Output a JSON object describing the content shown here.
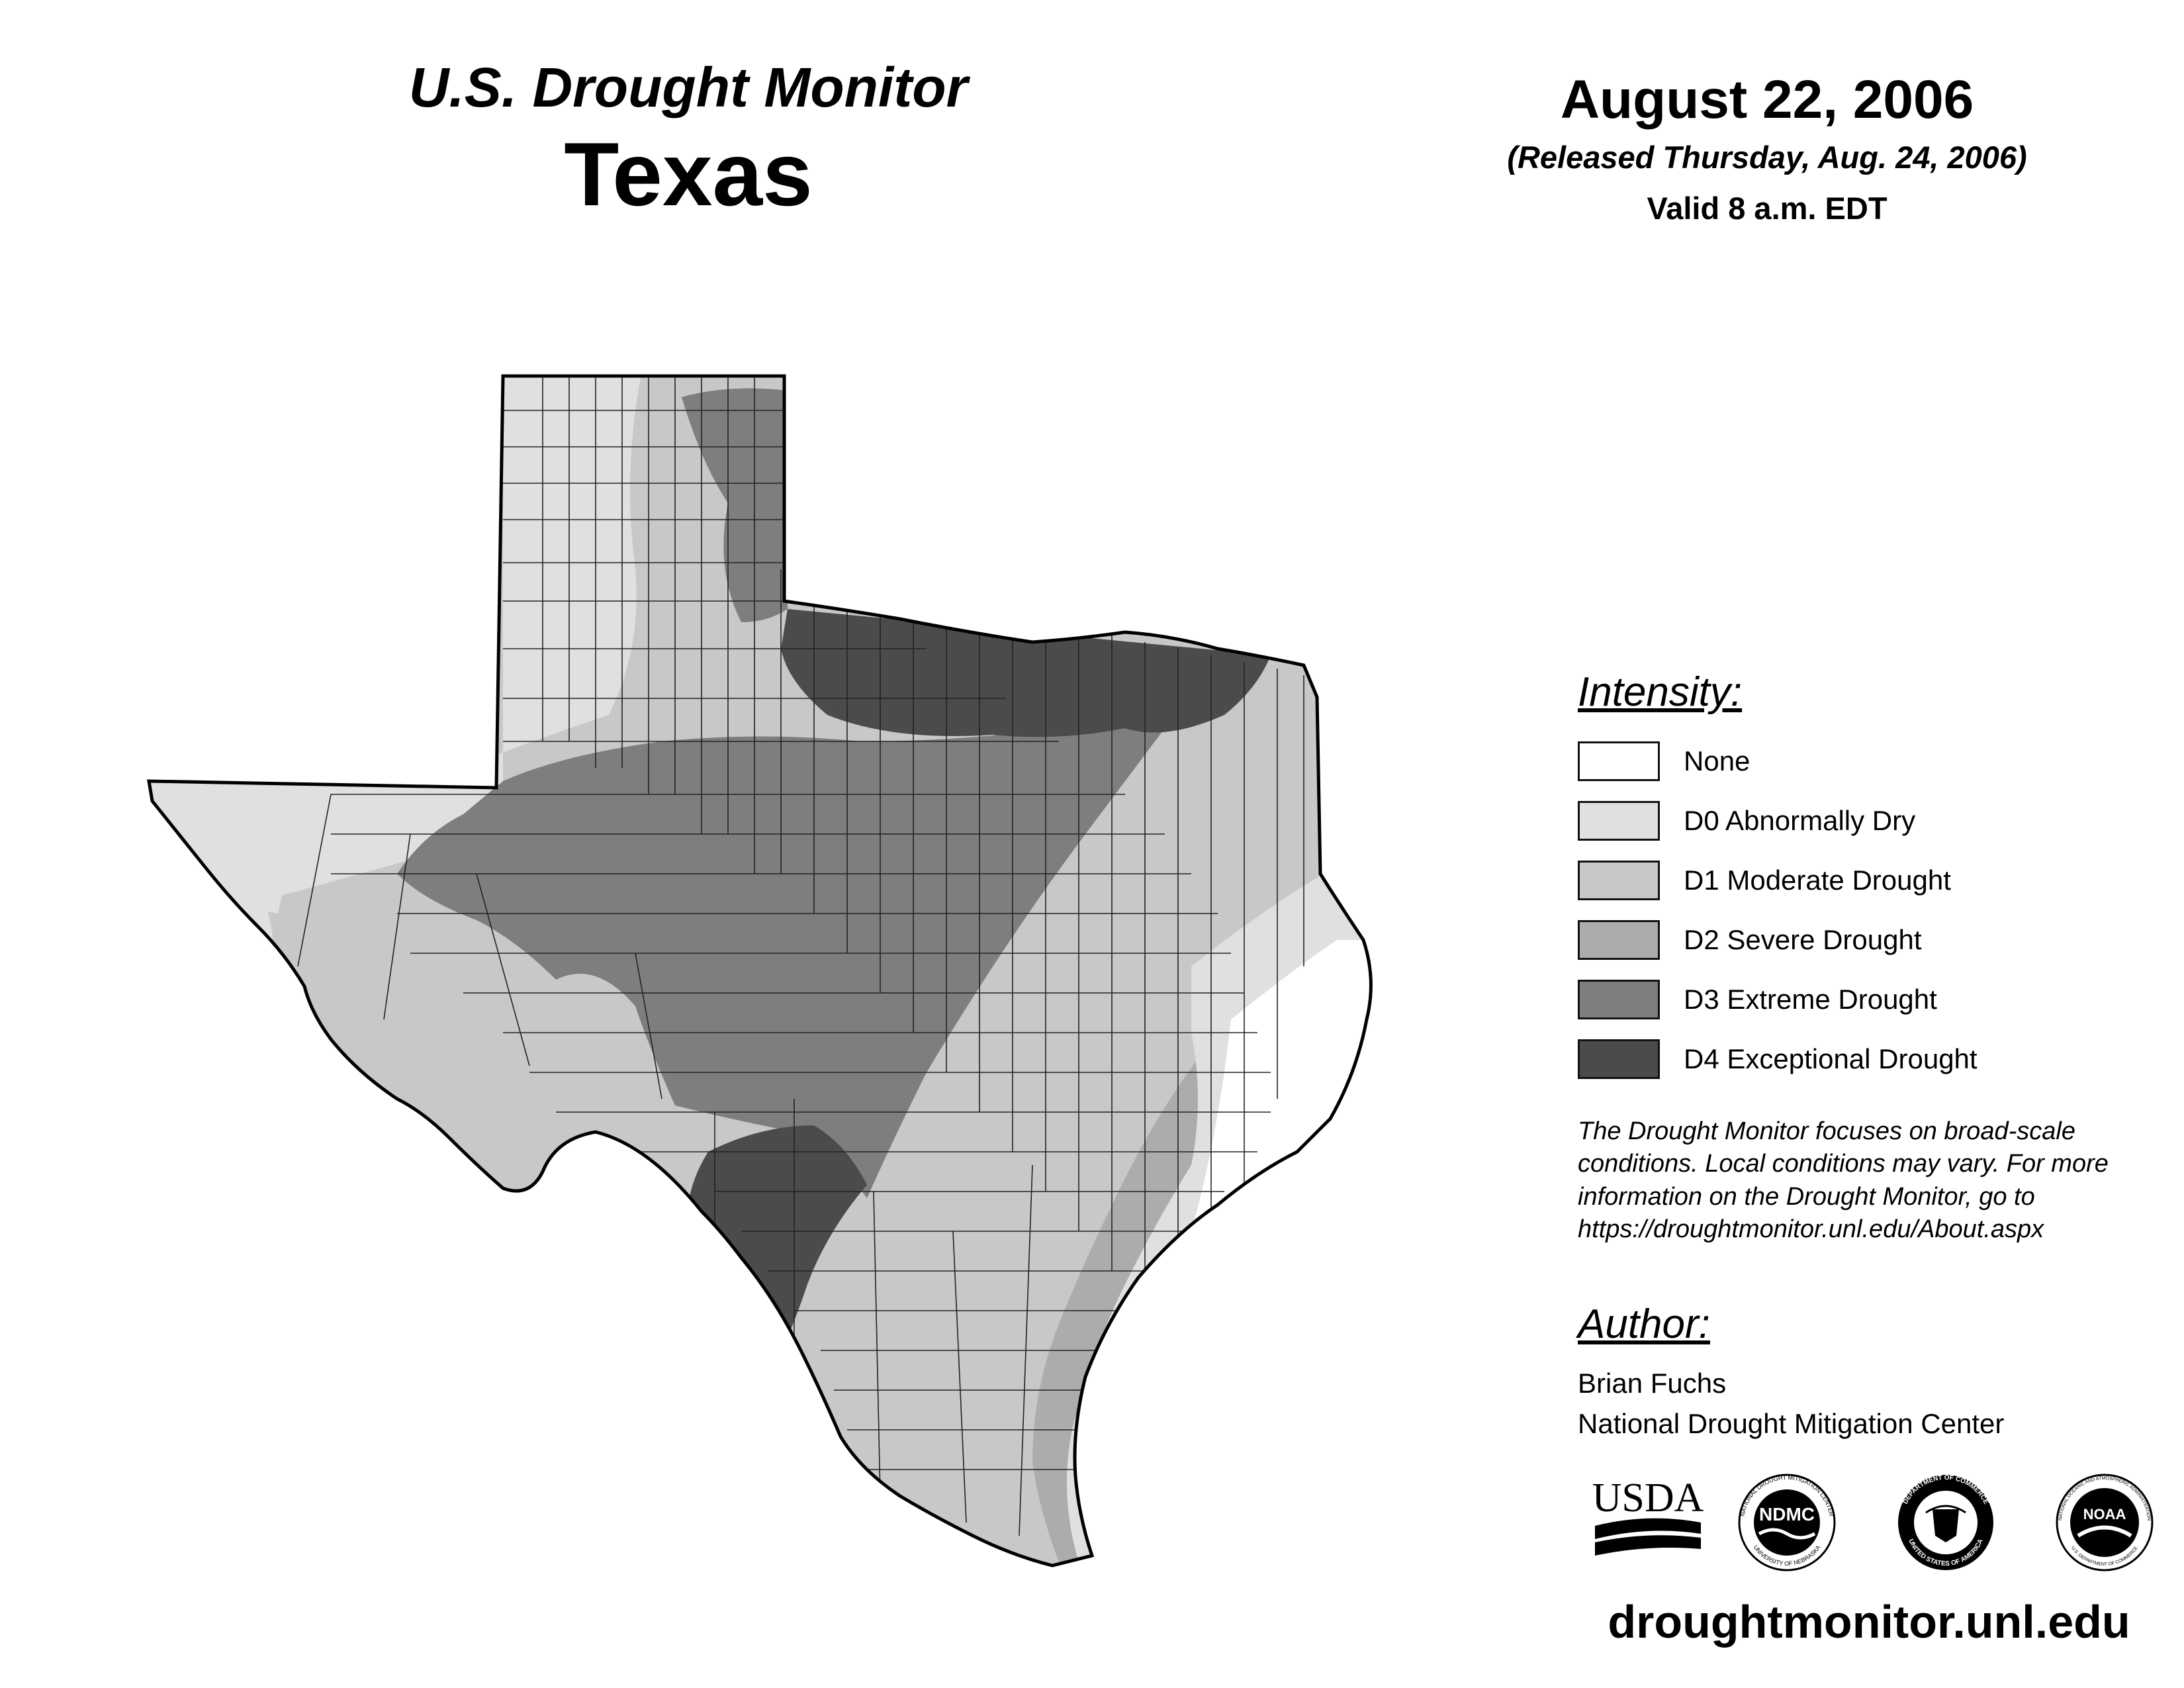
{
  "header": {
    "monitor_title": "U.S. Drought Monitor",
    "state_title": "Texas",
    "date": "August 22, 2006",
    "released": "(Released Thursday, Aug. 24, 2006)",
    "valid": "Valid 8 a.m. EDT"
  },
  "legend": {
    "heading": "Intensity:",
    "items": [
      {
        "label": "None",
        "color": "#ffffff"
      },
      {
        "label": "D0 Abnormally Dry",
        "color": "#e0e0e0"
      },
      {
        "label": "D1 Moderate Drought",
        "color": "#c8c8c8"
      },
      {
        "label": "D2 Severe Drought",
        "color": "#acacac"
      },
      {
        "label": "D3 Extreme Drought",
        "color": "#7e7e7e"
      },
      {
        "label": "D4 Exceptional Drought",
        "color": "#4b4b4b"
      }
    ]
  },
  "note": {
    "line1": "The Drought Monitor focuses on broad-scale",
    "line2": "conditions. Local conditions may vary. For more",
    "line3": "information on the Drought Monitor, go to",
    "line4": "https://droughtmonitor.unl.edu/About.aspx"
  },
  "author": {
    "heading": "Author:",
    "name": "Brian Fuchs",
    "organization": "National Drought Mitigation Center"
  },
  "logos": {
    "usda": "USDA",
    "ndmc": "NDMC",
    "ndmc_ring_top": "NATIONAL DROUGHT MITIGATION CENTER",
    "ndmc_ring_bottom": "UNIVERSITY OF NEBRASKA",
    "commerce_ring_top": "DEPARTMENT OF COMMERCE",
    "commerce_ring_bottom": "UNITED STATES OF AMERICA",
    "noaa": "NOAA",
    "noaa_ring_top": "NATIONAL OCEANIC AND ATMOSPHERIC ADMINISTRATION",
    "noaa_ring_bottom": "U.S. DEPARTMENT OF COMMERCE"
  },
  "website": "droughtmonitor.unl.edu"
}
